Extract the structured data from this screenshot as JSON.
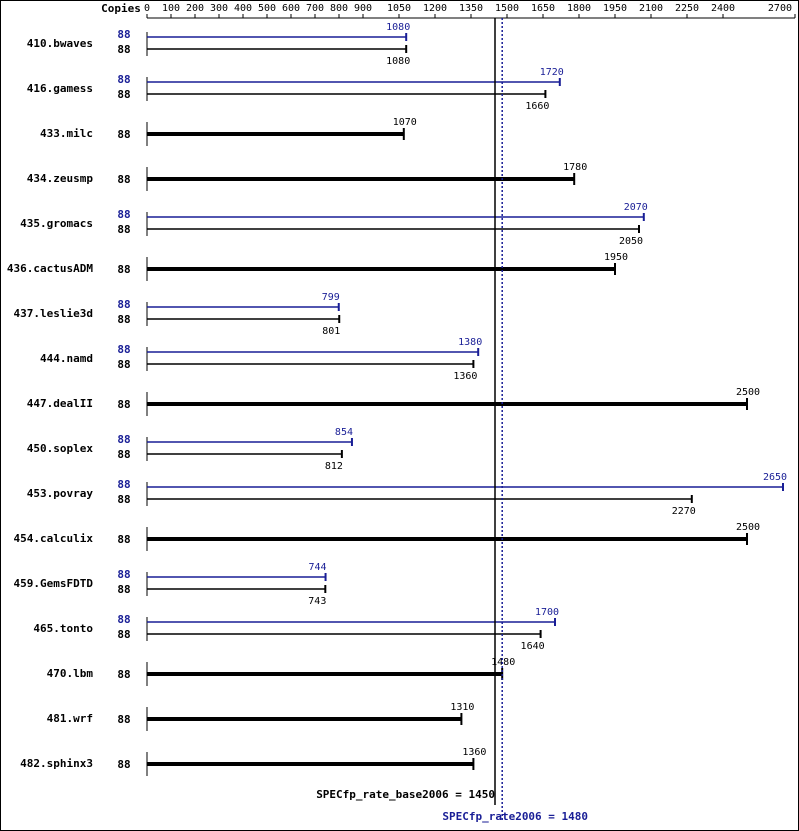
{
  "chart_data": {
    "type": "spec-bar",
    "axis_label": "Copies",
    "categories": [
      "410.bwaves",
      "416.gamess",
      "433.milc",
      "434.zeusmp",
      "435.gromacs",
      "436.cactusADM",
      "437.leslie3d",
      "444.namd",
      "447.dealII",
      "450.soplex",
      "453.povray",
      "454.calculix",
      "459.GemsFDTD",
      "465.tonto",
      "470.lbm",
      "481.wrf",
      "482.sphinx3"
    ],
    "series": [
      {
        "color": "#000000",
        "copies": [
          88,
          88,
          88,
          88,
          88,
          88,
          88,
          88,
          88,
          88,
          88,
          88,
          88,
          88,
          88,
          88,
          88
        ],
        "values": [
          1080,
          1660,
          1070,
          1780,
          2050,
          1950,
          801,
          1360,
          2500,
          812,
          2270,
          2500,
          743,
          1640,
          1480,
          1310,
          1360
        ]
      },
      {
        "color": "#191e96",
        "copies": [
          88,
          88,
          null,
          null,
          88,
          null,
          88,
          88,
          null,
          88,
          88,
          null,
          88,
          88,
          null,
          null,
          null
        ],
        "values": [
          1080,
          1720,
          null,
          null,
          2070,
          null,
          799,
          1380,
          null,
          854,
          2650,
          null,
          744,
          1700,
          null,
          null,
          null
        ]
      }
    ],
    "xlim": [
      0,
      2700
    ],
    "xticks": [
      0,
      100,
      200,
      300,
      400,
      500,
      600,
      700,
      800,
      900,
      1050,
      1200,
      1350,
      1500,
      1650,
      1800,
      1950,
      2100,
      2250,
      2400,
      2700
    ],
    "reference_lines": [
      {
        "label": "SPECfp_rate_base2006 = 1450",
        "value": 1450,
        "color": "#000000"
      },
      {
        "label": "SPECfp_rate2006 = 1480",
        "value": 1480,
        "color": "#191e96"
      }
    ]
  }
}
